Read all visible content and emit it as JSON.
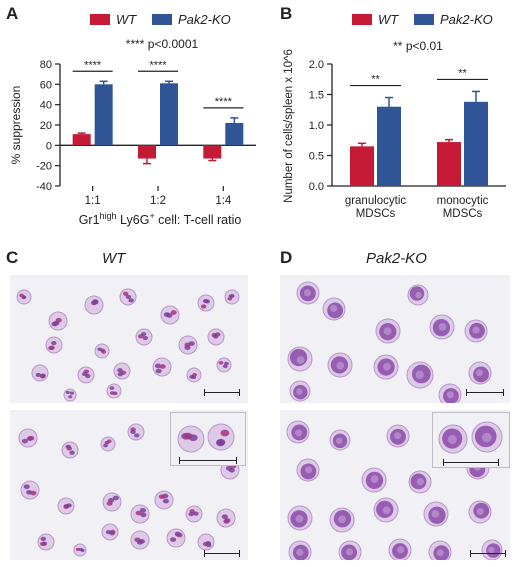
{
  "panels": {
    "a": {
      "letter": "A"
    },
    "b": {
      "letter": "B"
    },
    "c": {
      "letter": "C",
      "title": "WT"
    },
    "d": {
      "letter": "D",
      "title": "Pak2-KO"
    }
  },
  "legend_entries": [
    {
      "name": "WT",
      "color": "#c41a35"
    },
    {
      "name": "Pak2-KO",
      "color": "#2f5597"
    }
  ],
  "chart_data": [
    {
      "id": "panel-a",
      "type": "bar",
      "categories": [
        "1:1",
        "1:2",
        "1:4"
      ],
      "series": [
        {
          "name": "WT",
          "color": "#c41a35",
          "values": [
            11,
            -13,
            -13
          ],
          "errors": [
            1,
            5,
            2
          ]
        },
        {
          "name": "Pak2-KO",
          "color": "#2f5597",
          "values": [
            60,
            61,
            22
          ],
          "errors": [
            3,
            2,
            5
          ]
        }
      ],
      "ylabel": "% suppression",
      "xlabel": {
        "pre": "Gr1",
        "sup1": "high",
        "mid": " Ly6G",
        "sup2": "+",
        "post": " cell: T-cell ratio"
      },
      "ylim": [
        -40,
        80
      ],
      "yticks": [
        "80",
        "60",
        "40",
        "20",
        "0",
        "-20",
        "-40"
      ],
      "annotation": "**** p<0.0001",
      "significance": [
        "****",
        "****",
        "****"
      ],
      "legend": "top"
    },
    {
      "id": "panel-b",
      "type": "bar",
      "categories": [
        "granulocytic\nMDSCs",
        "monocytic\nMDSCs"
      ],
      "series": [
        {
          "name": "WT",
          "color": "#c41a35",
          "values": [
            0.65,
            0.72
          ],
          "errors": [
            0.05,
            0.04
          ]
        },
        {
          "name": "Pak2-KO",
          "color": "#2f5597",
          "values": [
            1.3,
            1.38
          ],
          "errors": [
            0.15,
            0.17
          ]
        }
      ],
      "ylabel": "Number of cells/spleen x 10^6",
      "ylim": [
        0,
        2.0
      ],
      "yticks": [
        "2.0",
        "1.5",
        "1.0",
        "0.5",
        "0.0"
      ],
      "annotation": "** p<0.01",
      "significance": [
        "**",
        "**"
      ],
      "legend": "top"
    }
  ],
  "colors": {
    "stain_purple": "#8a4aa8",
    "stain_magenta": "#b0358a",
    "stain_pale": "#c9a3d6",
    "background": "#f1f0f4"
  }
}
